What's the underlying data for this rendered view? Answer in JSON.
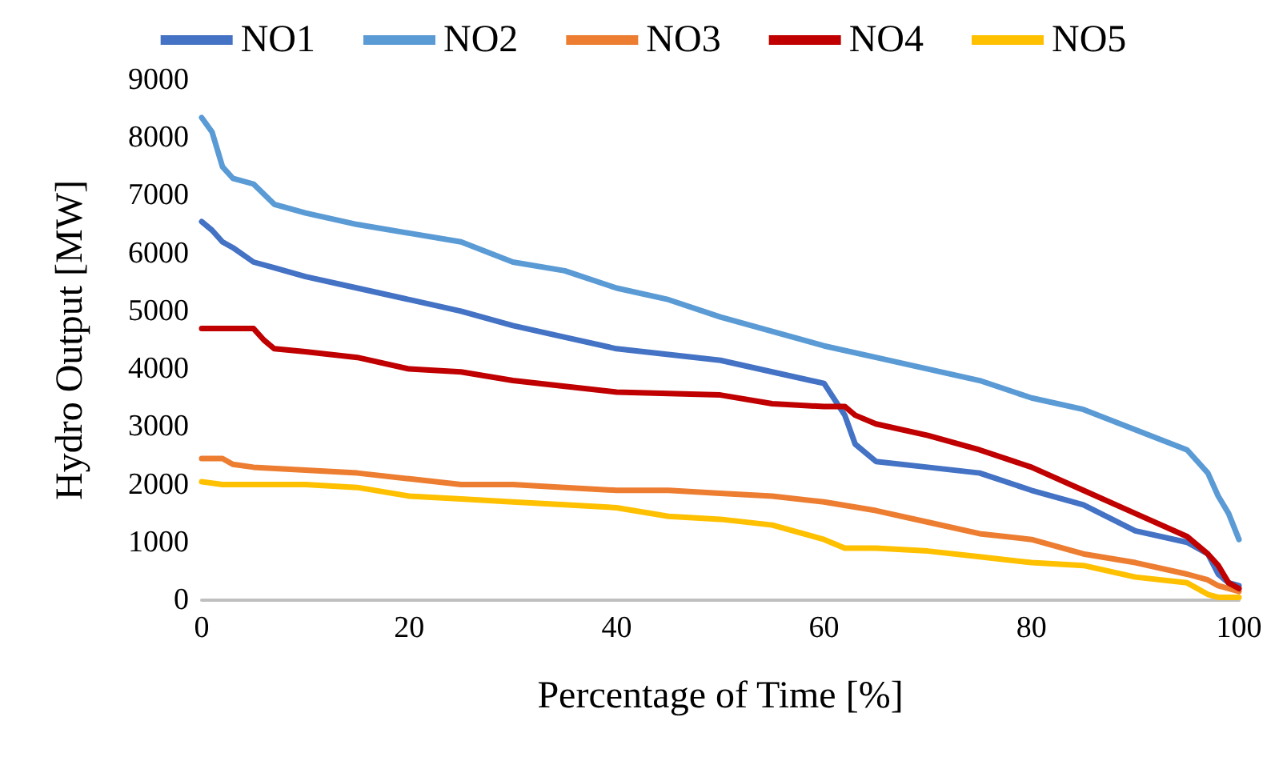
{
  "chart_data": {
    "type": "line",
    "xlabel": "Percentage of Time [%]",
    "ylabel": "Hydro Output [MW]",
    "xlim": [
      0,
      100
    ],
    "xticks": [
      0,
      20,
      40,
      60,
      80,
      100
    ],
    "ylim": [
      0,
      9000
    ],
    "yticks": [
      0,
      1000,
      2000,
      3000,
      4000,
      5000,
      6000,
      7000,
      8000,
      9000
    ],
    "grid": false,
    "legend": "top",
    "marker": "none",
    "line_style": "solid",
    "series": [
      {
        "name": "NO1",
        "color": "#4472c4",
        "x": [
          0,
          1,
          2,
          3,
          5,
          7,
          10,
          15,
          20,
          25,
          30,
          35,
          40,
          45,
          50,
          55,
          60,
          62,
          63,
          65,
          70,
          75,
          80,
          85,
          90,
          95,
          97,
          98,
          99,
          100
        ],
        "values": [
          6550,
          6400,
          6200,
          6100,
          5850,
          5750,
          5600,
          5400,
          5200,
          5000,
          4750,
          4550,
          4350,
          4250,
          4150,
          3950,
          3750,
          3200,
          2700,
          2400,
          2300,
          2200,
          1900,
          1650,
          1200,
          1000,
          800,
          450,
          300,
          250
        ]
      },
      {
        "name": "NO2",
        "color": "#5b9bd5",
        "x": [
          0,
          1,
          2,
          3,
          5,
          7,
          10,
          15,
          20,
          25,
          30,
          35,
          40,
          45,
          50,
          55,
          60,
          65,
          70,
          75,
          80,
          85,
          90,
          95,
          97,
          98,
          99,
          100
        ],
        "values": [
          8350,
          8100,
          7500,
          7300,
          7200,
          6850,
          6700,
          6500,
          6350,
          6200,
          5850,
          5700,
          5400,
          5200,
          4900,
          4650,
          4400,
          4200,
          4000,
          3800,
          3500,
          3300,
          2950,
          2600,
          2200,
          1800,
          1500,
          1050
        ]
      },
      {
        "name": "NO3",
        "color": "#ed7d31",
        "x": [
          0,
          2,
          3,
          5,
          10,
          15,
          20,
          25,
          30,
          35,
          40,
          45,
          50,
          55,
          60,
          65,
          70,
          75,
          80,
          85,
          90,
          95,
          97,
          98,
          100
        ],
        "values": [
          2450,
          2450,
          2350,
          2300,
          2250,
          2200,
          2100,
          2000,
          2000,
          1950,
          1900,
          1900,
          1850,
          1800,
          1700,
          1550,
          1350,
          1150,
          1050,
          800,
          650,
          450,
          350,
          250,
          150
        ]
      },
      {
        "name": "NO4",
        "color": "#c00000",
        "x": [
          0,
          5,
          6,
          7,
          10,
          15,
          20,
          25,
          30,
          35,
          40,
          50,
          55,
          60,
          62,
          63,
          65,
          70,
          75,
          80,
          85,
          90,
          95,
          97,
          98,
          99,
          100
        ],
        "values": [
          4700,
          4700,
          4500,
          4350,
          4300,
          4200,
          4000,
          3950,
          3800,
          3700,
          3600,
          3550,
          3400,
          3350,
          3350,
          3200,
          3050,
          2850,
          2600,
          2300,
          1900,
          1500,
          1100,
          800,
          600,
          300,
          200
        ]
      },
      {
        "name": "NO5",
        "color": "#ffc000",
        "x": [
          0,
          2,
          5,
          10,
          15,
          20,
          25,
          30,
          35,
          40,
          45,
          50,
          55,
          60,
          62,
          65,
          70,
          75,
          80,
          85,
          90,
          95,
          97,
          98,
          100
        ],
        "values": [
          2050,
          2000,
          2000,
          2000,
          1950,
          1800,
          1750,
          1700,
          1650,
          1600,
          1450,
          1400,
          1300,
          1050,
          900,
          900,
          850,
          750,
          650,
          600,
          400,
          300,
          100,
          50,
          50
        ]
      }
    ]
  }
}
